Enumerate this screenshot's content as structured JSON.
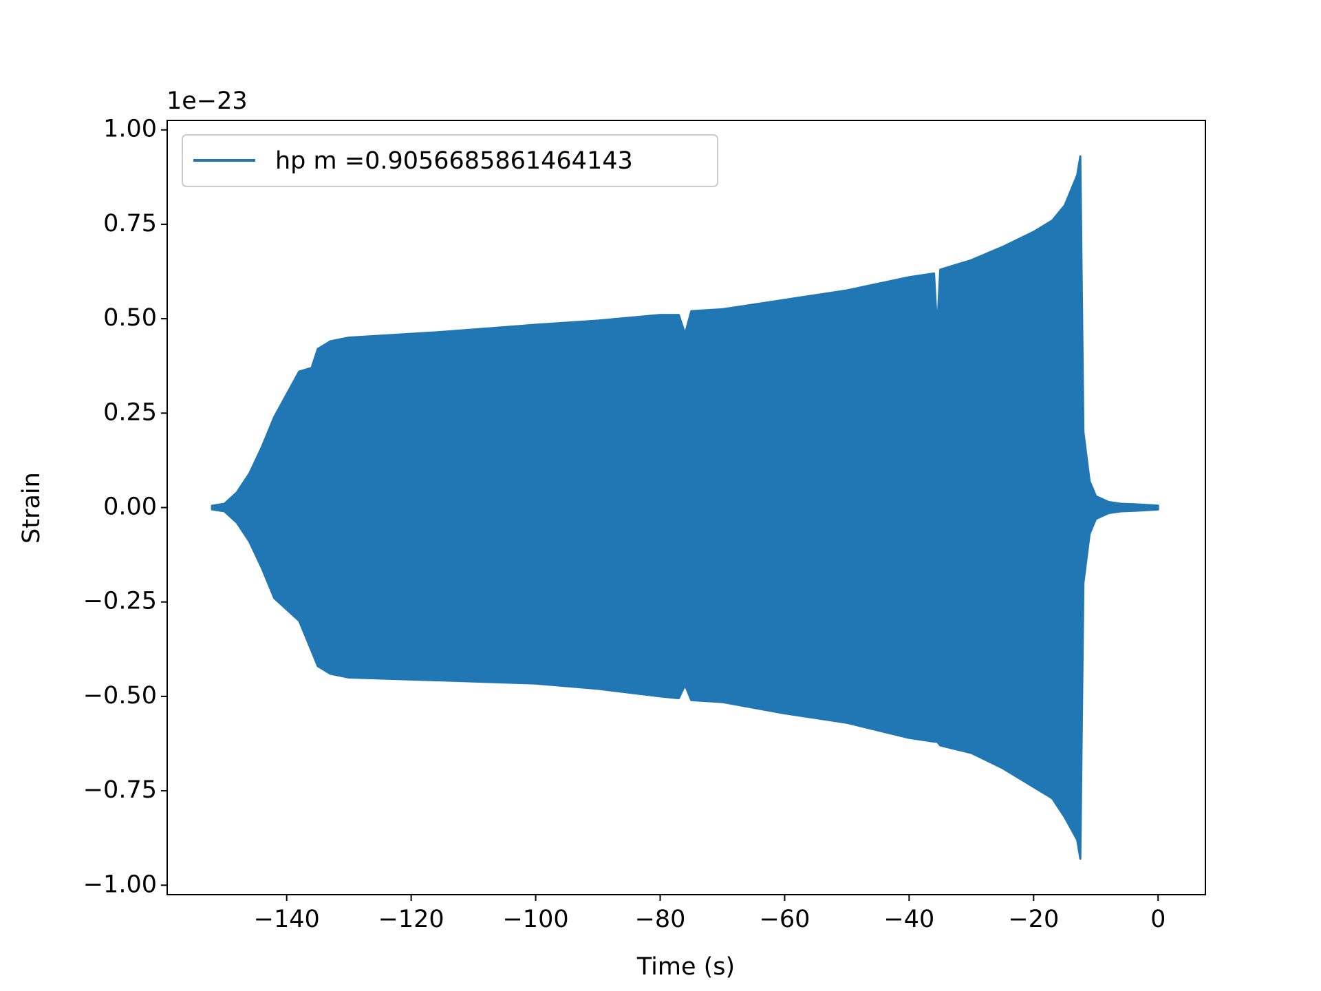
{
  "chart_data": {
    "type": "area",
    "xlabel": "Time (s)",
    "ylabel": "Strain",
    "offset_text": "1e−23",
    "x": [
      -152,
      -150,
      -148,
      -146,
      -144,
      -142,
      -140,
      -138,
      -136,
      -135,
      -133,
      -130,
      -115,
      -100,
      -90,
      -80,
      -77,
      -76,
      -75,
      -70,
      -60,
      -50,
      -40,
      -36,
      -35.5,
      -35,
      -30,
      -25,
      -20,
      -17,
      -15,
      -13,
      -12.5,
      -12,
      -11,
      -10,
      -8,
      -6,
      -3,
      0
    ],
    "series": [
      {
        "name": "hp m =0.9056685861464143",
        "color": "#2077b4",
        "values": [
          0.005,
          0.01,
          0.04,
          0.09,
          0.16,
          0.24,
          0.3,
          0.36,
          0.37,
          0.42,
          0.44,
          0.45,
          0.465,
          0.484,
          0.495,
          0.51,
          0.51,
          0.46,
          0.52,
          0.525,
          0.55,
          0.575,
          0.61,
          0.62,
          0.47,
          0.63,
          0.655,
          0.69,
          0.73,
          0.76,
          0.8,
          0.88,
          0.93,
          0.2,
          0.07,
          0.03,
          0.015,
          0.01,
          0.008,
          0.005
        ],
        "lower": [
          -0.005,
          -0.01,
          -0.04,
          -0.09,
          -0.16,
          -0.24,
          -0.27,
          -0.3,
          -0.38,
          -0.42,
          -0.44,
          -0.45,
          -0.458,
          -0.466,
          -0.48,
          -0.5,
          -0.505,
          -0.47,
          -0.51,
          -0.515,
          -0.545,
          -0.57,
          -0.61,
          -0.62,
          -0.62,
          -0.63,
          -0.65,
          -0.69,
          -0.74,
          -0.77,
          -0.82,
          -0.88,
          -0.93,
          -0.2,
          -0.07,
          -0.03,
          -0.015,
          -0.01,
          -0.008,
          -0.005
        ]
      }
    ],
    "xlim": [
      -159.2,
      7.6
    ],
    "ylim": [
      -1.025,
      1.025
    ],
    "xticks": [
      {
        "value": -140,
        "label": "−140"
      },
      {
        "value": -120,
        "label": "−120"
      },
      {
        "value": -100,
        "label": "−100"
      },
      {
        "value": -80,
        "label": "−80"
      },
      {
        "value": -60,
        "label": "−60"
      },
      {
        "value": -40,
        "label": "−40"
      },
      {
        "value": -20,
        "label": "−20"
      },
      0
    ],
    "yticks": [
      {
        "value": -1,
        "label": "−1.00"
      },
      {
        "value": -0.75,
        "label": "−0.75"
      },
      {
        "value": -0.5,
        "label": "−0.50"
      },
      {
        "value": -0.25,
        "label": "−0.25"
      },
      {
        "value": 0,
        "label": "0.00"
      },
      {
        "value": 0.25,
        "label": "0.25"
      },
      {
        "value": 0.5,
        "label": "0.50"
      },
      {
        "value": 0.75,
        "label": "0.75"
      },
      {
        "value": 1,
        "label": "1.00"
      }
    ],
    "legend": "upper left"
  }
}
